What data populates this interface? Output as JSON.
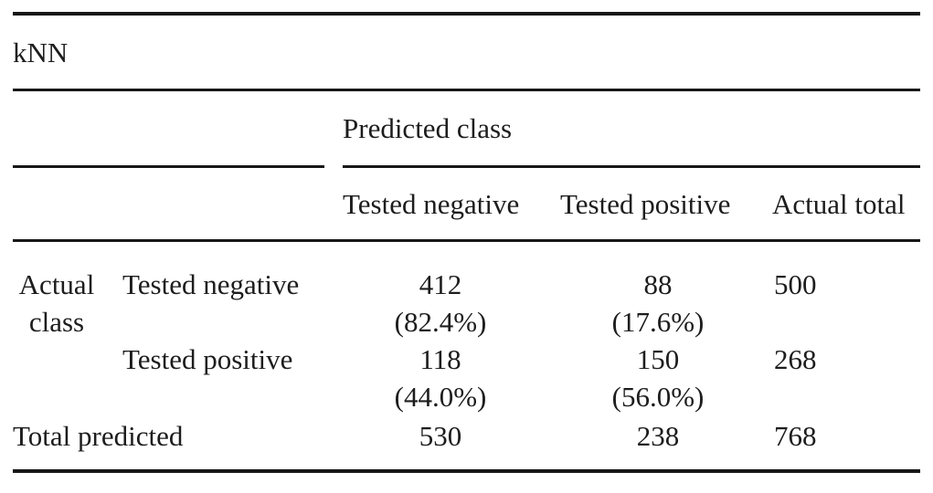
{
  "colors": {
    "background": "#ffffff",
    "text": "#1d1d1d",
    "rule": "#171717"
  },
  "table": {
    "title": "kNN",
    "spanner": "Predicted class",
    "columns": [
      "Tested negative",
      "Tested positive",
      "Actual total"
    ],
    "row_group": {
      "line1": "Actual",
      "line2": "class"
    },
    "rows": [
      {
        "label": "Tested negative",
        "cells": [
          {
            "value": "412",
            "pct": "(82.4%)"
          },
          {
            "value": "88",
            "pct": "(17.6%)"
          },
          {
            "value": "500",
            "pct": ""
          }
        ]
      },
      {
        "label": "Tested positive",
        "cells": [
          {
            "value": "118",
            "pct": "(44.0%)"
          },
          {
            "value": "150",
            "pct": "(56.0%)"
          },
          {
            "value": "268",
            "pct": ""
          }
        ]
      }
    ],
    "total_row": {
      "label": "Total predicted",
      "cells": [
        "530",
        "238",
        "768"
      ]
    }
  }
}
